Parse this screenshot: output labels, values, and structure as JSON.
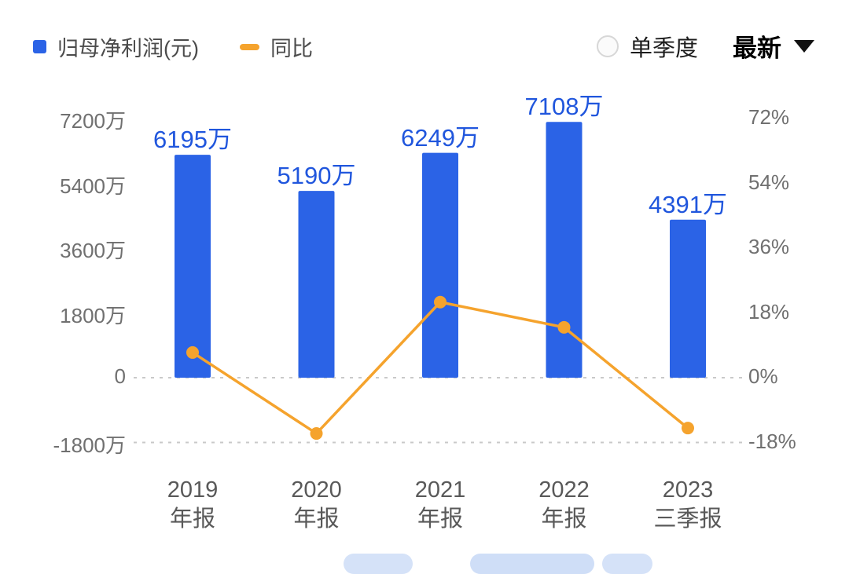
{
  "colors": {
    "bar": "#2B63E6",
    "bar_label": "#2056DD",
    "line": "#F5A32D",
    "axis_text": "#707070",
    "category_text": "#595959",
    "grid": "#C9C9C9"
  },
  "legend": {
    "items": [
      {
        "label": "归母净利润(元)",
        "marker": "square",
        "color": "#2B63E6"
      },
      {
        "label": "同比",
        "marker": "dash",
        "color": "#F5A32D"
      }
    ]
  },
  "controls": {
    "quarter_radio_label": "单季度",
    "latest_dropdown_label": "最新"
  },
  "chart_data": {
    "type": "bar+line",
    "title": "",
    "bar_unit": "万元",
    "line_unit": "%",
    "categories": [
      [
        "2019",
        "年报"
      ],
      [
        "2020",
        "年报"
      ],
      [
        "2021",
        "年报"
      ],
      [
        "2022",
        "年报"
      ],
      [
        "2023",
        "三季报"
      ]
    ],
    "series": [
      {
        "name": "归母净利润(元)",
        "type": "bar",
        "values": [
          6195,
          5190,
          6249,
          7108,
          4391
        ],
        "labels": [
          "6195万",
          "5190万",
          "6249万",
          "7108万",
          "4391万"
        ],
        "color": "#2B63E6"
      },
      {
        "name": "同比",
        "type": "line",
        "values": [
          7,
          -15.5,
          21,
          14,
          -14
        ],
        "color": "#F5A32D"
      }
    ],
    "left_axis": {
      "ticks": [
        "7200万",
        "5400万",
        "3600万",
        "1800万",
        "0",
        "-1800万"
      ],
      "values": [
        7200,
        5400,
        3600,
        1800,
        0,
        -1800
      ],
      "range": [
        -1800,
        7200
      ]
    },
    "right_axis": {
      "ticks": [
        "72%",
        "54%",
        "36%",
        "18%",
        "0%",
        "-18%"
      ],
      "values": [
        72,
        54,
        36,
        18,
        0,
        -18
      ],
      "range": [
        -18,
        72
      ]
    },
    "dashed_gridlines_values": [
      0,
      -1800
    ],
    "legend_position": "top-left",
    "grid": "dashed lines at 0 and -1800万 only"
  }
}
